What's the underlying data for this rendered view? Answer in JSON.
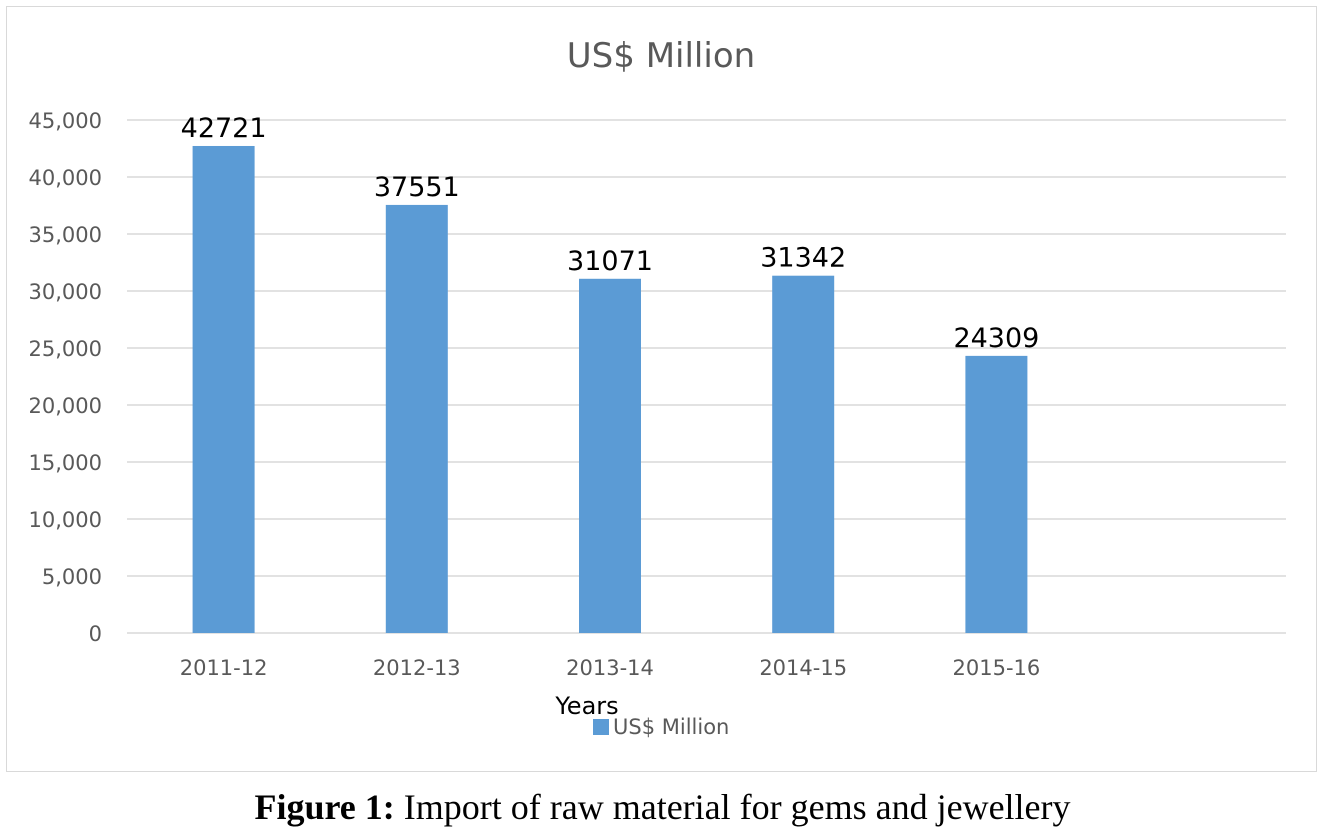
{
  "chart_data": {
    "type": "bar",
    "title": "US$ Million",
    "xlabel": "Years",
    "ylabel": "",
    "categories": [
      "2011-12",
      "2012-13",
      "2013-14",
      "2014-15",
      "2015-16"
    ],
    "series": [
      {
        "name": "US$ Million",
        "values": [
          42721,
          37551,
          31071,
          31342,
          24309
        ],
        "color": "#5b9bd5"
      }
    ],
    "ylim": [
      0,
      45000
    ],
    "yticks": [
      0,
      5000,
      10000,
      15000,
      20000,
      25000,
      30000,
      35000,
      40000,
      45000
    ],
    "ytick_labels": [
      "0",
      "5,000",
      "10,000",
      "15,000",
      "20,000",
      "25,000",
      "30,000",
      "35,000",
      "40,000",
      "45,000"
    ],
    "data_labels": [
      "42721",
      "37551",
      "31071",
      "31342",
      "24309"
    ],
    "grid": true,
    "legend": "bottom",
    "colors": {
      "bar": "#5b9bd5",
      "gridline": "#d9d9d9",
      "title": "#595959",
      "tick": "#595959",
      "data_label": "#000000"
    }
  },
  "caption": {
    "label": "Figure 1:",
    "text": " Import of raw material for gems and jewellery"
  }
}
